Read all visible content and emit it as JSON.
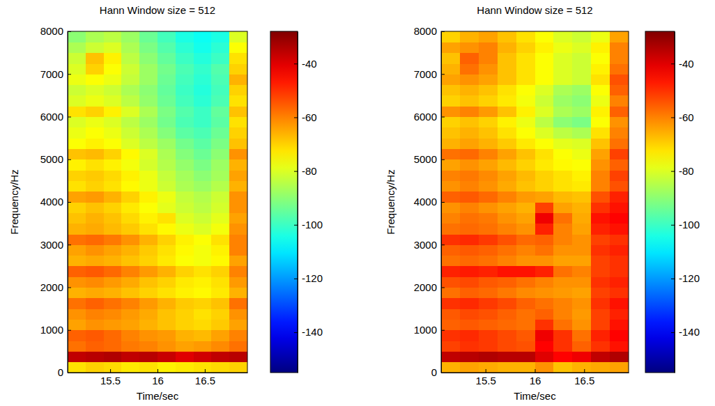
{
  "chart_data": [
    {
      "type": "heatmap",
      "title": "Hann Window size = 512",
      "xlabel": "Time/sec",
      "ylabel": "Frequency/Hz",
      "xlim": [
        15.05,
        16.95
      ],
      "xticks": [
        15.5,
        16,
        16.5
      ],
      "ylim": [
        0,
        8000
      ],
      "yticks": [
        0,
        1000,
        2000,
        3000,
        4000,
        5000,
        6000,
        7000,
        8000
      ],
      "x_edges": [
        15.05,
        15.24,
        15.43,
        15.62,
        15.81,
        16.0,
        16.19,
        16.38,
        16.57,
        16.76,
        16.95
      ],
      "y_edges": [
        0,
        250,
        500,
        750,
        1000,
        1250,
        1500,
        1750,
        2000,
        2250,
        2500,
        2750,
        3000,
        3250,
        3500,
        3750,
        4000,
        4250,
        4500,
        4750,
        5000,
        5250,
        5500,
        5750,
        6000,
        6250,
        6500,
        6750,
        7000,
        7250,
        7500,
        7750,
        8000
      ],
      "cells": [
        [
          -72,
          -70,
          -71,
          -73,
          -72,
          -74,
          -73,
          -72,
          -71,
          -70
        ],
        [
          -36,
          -35,
          -34,
          -36,
          -35,
          -37,
          -40,
          -38,
          -36,
          -35
        ],
        [
          -58,
          -56,
          -57,
          -59,
          -60,
          -62,
          -64,
          -63,
          -61,
          -58
        ],
        [
          -56,
          -55,
          -57,
          -60,
          -62,
          -63,
          -66,
          -67,
          -64,
          -60
        ],
        [
          -64,
          -62,
          -63,
          -64,
          -66,
          -68,
          -70,
          -71,
          -69,
          -64
        ],
        [
          -62,
          -60,
          -61,
          -63,
          -65,
          -68,
          -70,
          -72,
          -70,
          -62
        ],
        [
          -58,
          -56,
          -58,
          -60,
          -63,
          -66,
          -69,
          -70,
          -68,
          -58
        ],
        [
          -66,
          -65,
          -66,
          -68,
          -70,
          -72,
          -74,
          -75,
          -73,
          -66
        ],
        [
          -62,
          -61,
          -63,
          -65,
          -68,
          -70,
          -73,
          -74,
          -72,
          -63
        ],
        [
          -56,
          -55,
          -57,
          -60,
          -63,
          -66,
          -70,
          -72,
          -70,
          -60
        ],
        [
          -66,
          -65,
          -66,
          -68,
          -70,
          -73,
          -76,
          -77,
          -75,
          -64
        ],
        [
          -64,
          -62,
          -64,
          -66,
          -69,
          -72,
          -75,
          -77,
          -74,
          -60
        ],
        [
          -58,
          -57,
          -59,
          -62,
          -66,
          -70,
          -74,
          -76,
          -72,
          -60
        ],
        [
          -66,
          -65,
          -67,
          -69,
          -72,
          -75,
          -78,
          -80,
          -77,
          -62
        ],
        [
          -68,
          -66,
          -68,
          -71,
          -74,
          -72,
          -80,
          -82,
          -79,
          -64
        ],
        [
          -70,
          -68,
          -70,
          -73,
          -76,
          -79,
          -82,
          -84,
          -81,
          -62
        ],
        [
          -64,
          -63,
          -66,
          -70,
          -74,
          -78,
          -83,
          -85,
          -82,
          -62
        ],
        [
          -72,
          -70,
          -72,
          -75,
          -78,
          -82,
          -86,
          -88,
          -85,
          -66
        ],
        [
          -70,
          -69,
          -71,
          -74,
          -78,
          -83,
          -87,
          -90,
          -87,
          -64
        ],
        [
          -74,
          -72,
          -74,
          -77,
          -81,
          -85,
          -89,
          -92,
          -88,
          -66
        ],
        [
          -68,
          -67,
          -70,
          -75,
          -80,
          -86,
          -91,
          -94,
          -90,
          -62
        ],
        [
          -76,
          -74,
          -76,
          -80,
          -84,
          -88,
          -93,
          -96,
          -92,
          -68
        ],
        [
          -78,
          -76,
          -78,
          -82,
          -86,
          -91,
          -96,
          -98,
          -94,
          -70
        ],
        [
          -80,
          -78,
          -80,
          -84,
          -88,
          -93,
          -98,
          -100,
          -96,
          -72
        ],
        [
          -72,
          -70,
          -74,
          -80,
          -86,
          -92,
          -97,
          -100,
          -95,
          -68
        ],
        [
          -80,
          -78,
          -80,
          -84,
          -89,
          -94,
          -99,
          -102,
          -98,
          -72
        ],
        [
          -82,
          -80,
          -82,
          -86,
          -90,
          -95,
          -100,
          -103,
          -99,
          -70
        ],
        [
          -78,
          -76,
          -78,
          -83,
          -88,
          -94,
          -99,
          -102,
          -98,
          -66
        ],
        [
          -80,
          -70,
          -76,
          -82,
          -88,
          -93,
          -98,
          -101,
          -97,
          -70
        ],
        [
          -82,
          -68,
          -74,
          -84,
          -90,
          -95,
          -100,
          -103,
          -100,
          -72
        ],
        [
          -86,
          -82,
          -80,
          -86,
          -92,
          -97,
          -102,
          -105,
          -102,
          -76
        ],
        [
          -90,
          -86,
          -84,
          -88,
          -94,
          -99,
          -104,
          -106,
          -104,
          -80
        ]
      ],
      "colorbar_range": [
        -155,
        -28
      ],
      "colorbar_ticks": [
        -140,
        -120,
        -100,
        -80,
        -60,
        -40
      ]
    },
    {
      "type": "heatmap",
      "title": "Hann Window size = 512",
      "xlabel": "Time/sec",
      "ylabel": "Frequency/Hz",
      "xlim": [
        15.05,
        16.95
      ],
      "xticks": [
        15.5,
        16,
        16.5
      ],
      "ylim": [
        0,
        8000
      ],
      "yticks": [
        0,
        1000,
        2000,
        3000,
        4000,
        5000,
        6000,
        7000,
        8000
      ],
      "x_edges": [
        15.05,
        15.24,
        15.43,
        15.62,
        15.81,
        16.0,
        16.19,
        16.38,
        16.57,
        16.76,
        16.95
      ],
      "y_edges": [
        0,
        250,
        500,
        750,
        1000,
        1250,
        1500,
        1750,
        2000,
        2250,
        2500,
        2750,
        3000,
        3250,
        3500,
        3750,
        4000,
        4250,
        4500,
        4750,
        5000,
        5250,
        5500,
        5750,
        6000,
        6250,
        6500,
        6750,
        7000,
        7250,
        7500,
        7750,
        8000
      ],
      "cells": [
        [
          -66,
          -64,
          -65,
          -66,
          -66,
          -62,
          -68,
          -66,
          -65,
          -64
        ],
        [
          -36,
          -35,
          -34,
          -35,
          -35,
          -40,
          -44,
          -42,
          -36,
          -34
        ],
        [
          -52,
          -50,
          -51,
          -53,
          -54,
          -44,
          -50,
          -56,
          -50,
          -46
        ],
        [
          -50,
          -49,
          -51,
          -53,
          -55,
          -42,
          -50,
          -58,
          -48,
          -44
        ],
        [
          -56,
          -55,
          -56,
          -57,
          -58,
          -50,
          -58,
          -62,
          -52,
          -46
        ],
        [
          -55,
          -53,
          -54,
          -56,
          -58,
          -56,
          -60,
          -63,
          -52,
          -48
        ],
        [
          -50,
          -49,
          -51,
          -53,
          -56,
          -58,
          -60,
          -62,
          -50,
          -46
        ],
        [
          -58,
          -56,
          -57,
          -59,
          -61,
          -62,
          -63,
          -64,
          -52,
          -50
        ],
        [
          -54,
          -53,
          -55,
          -56,
          -58,
          -60,
          -62,
          -62,
          -50,
          -48
        ],
        [
          -48,
          -47,
          -48,
          -46,
          -46,
          -48,
          -58,
          -60,
          -52,
          -50
        ],
        [
          -58,
          -57,
          -58,
          -60,
          -62,
          -62,
          -64,
          -64,
          -52,
          -50
        ],
        [
          -56,
          -55,
          -56,
          -58,
          -60,
          -58,
          -62,
          -62,
          -50,
          -48
        ],
        [
          -50,
          -49,
          -51,
          -54,
          -57,
          -56,
          -60,
          -62,
          -52,
          -50
        ],
        [
          -58,
          -57,
          -58,
          -60,
          -62,
          -48,
          -60,
          -64,
          -48,
          -46
        ],
        [
          -60,
          -58,
          -59,
          -62,
          -64,
          -42,
          -58,
          -65,
          -46,
          -44
        ],
        [
          -62,
          -60,
          -62,
          -64,
          -66,
          -52,
          -64,
          -66,
          -50,
          -46
        ],
        [
          -56,
          -55,
          -57,
          -60,
          -63,
          -64,
          -67,
          -68,
          -54,
          -48
        ],
        [
          -62,
          -60,
          -62,
          -65,
          -68,
          -70,
          -72,
          -73,
          -60,
          -54
        ],
        [
          -60,
          -59,
          -61,
          -64,
          -67,
          -70,
          -72,
          -74,
          -60,
          -52
        ],
        [
          -64,
          -62,
          -64,
          -67,
          -70,
          -73,
          -75,
          -76,
          -62,
          -56
        ],
        [
          -58,
          -57,
          -60,
          -64,
          -68,
          -72,
          -76,
          -78,
          -64,
          -52
        ],
        [
          -66,
          -64,
          -66,
          -69,
          -73,
          -76,
          -79,
          -80,
          -68,
          -58
        ],
        [
          -68,
          -66,
          -68,
          -72,
          -76,
          -80,
          -84,
          -86,
          -72,
          -60
        ],
        [
          -70,
          -68,
          -70,
          -74,
          -78,
          -84,
          -90,
          -92,
          -76,
          -62
        ],
        [
          -62,
          -60,
          -63,
          -68,
          -74,
          -80,
          -86,
          -88,
          -74,
          -56
        ],
        [
          -70,
          -68,
          -70,
          -73,
          -77,
          -82,
          -88,
          -90,
          -78,
          -60
        ],
        [
          -68,
          -66,
          -68,
          -72,
          -76,
          -80,
          -86,
          -88,
          -76,
          -56
        ],
        [
          -64,
          -62,
          -64,
          -68,
          -72,
          -76,
          -80,
          -82,
          -72,
          -54
        ],
        [
          -66,
          -58,
          -62,
          -68,
          -72,
          -76,
          -80,
          -82,
          -74,
          -58
        ],
        [
          -68,
          -56,
          -60,
          -68,
          -72,
          -76,
          -80,
          -82,
          -76,
          -60
        ],
        [
          -64,
          -62,
          -60,
          -66,
          -70,
          -74,
          -78,
          -80,
          -74,
          -60
        ],
        [
          -70,
          -66,
          -64,
          -68,
          -72,
          -76,
          -80,
          -82,
          -78,
          -64
        ]
      ],
      "colorbar_range": [
        -155,
        -28
      ],
      "colorbar_ticks": [
        -140,
        -120,
        -100,
        -80,
        -60,
        -40
      ]
    }
  ]
}
